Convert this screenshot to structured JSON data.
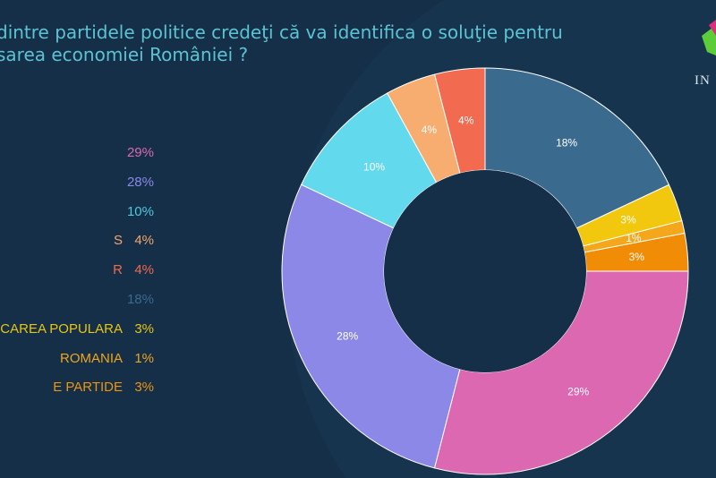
{
  "title_lines": [
    "dintre partidele politice credeţi că va identifica o soluţie pentru",
    "sarea economiei României ?"
  ],
  "logo": {
    "text": "IN"
  },
  "chart_data": {
    "type": "pie",
    "donut": true,
    "slices": [
      {
        "label": "",
        "value": 18,
        "display": "18%",
        "color": "#3b6a8f"
      },
      {
        "label": "CAREA POPULARA",
        "value": 3,
        "display": "3%",
        "color": "#f2c80f"
      },
      {
        "label": "ROMANIA",
        "value": 1,
        "display": "1%",
        "color": "#f4a71a"
      },
      {
        "label": "E PARTIDE",
        "value": 3,
        "display": "3%",
        "color": "#f08c05"
      },
      {
        "label": "",
        "value": 29,
        "display": "29%",
        "color": "#dc68b2"
      },
      {
        "label": "",
        "value": 28,
        "display": "28%",
        "color": "#8c88e8"
      },
      {
        "label": "",
        "value": 10,
        "display": "10%",
        "color": "#62d9ec"
      },
      {
        "label": "S",
        "value": 4,
        "display": "4%",
        "color": "#f8ad70"
      },
      {
        "label": "R",
        "value": 4,
        "display": "4%",
        "color": "#f26a50"
      }
    ],
    "legend": [
      {
        "label": "",
        "value": "29%",
        "color": "#dc68b2"
      },
      {
        "label": "",
        "value": "28%",
        "color": "#8c88e8"
      },
      {
        "label": "",
        "value": "10%",
        "color": "#4fc9df"
      },
      {
        "label": "S",
        "value": "4%",
        "color": "#f3a66e"
      },
      {
        "label": "R",
        "value": "4%",
        "color": "#ee6a50"
      },
      {
        "label": "",
        "value": "18%",
        "color": "#3b6a8f"
      },
      {
        "label": "CAREA POPULARA",
        "value": "3%",
        "color": "#e8c514"
      },
      {
        "label": "ROMANIA",
        "value": "1%",
        "color": "#f0a51c"
      },
      {
        "label": "E PARTIDE",
        "value": "3%",
        "color": "#ee9510"
      }
    ],
    "legend_position": "left"
  }
}
